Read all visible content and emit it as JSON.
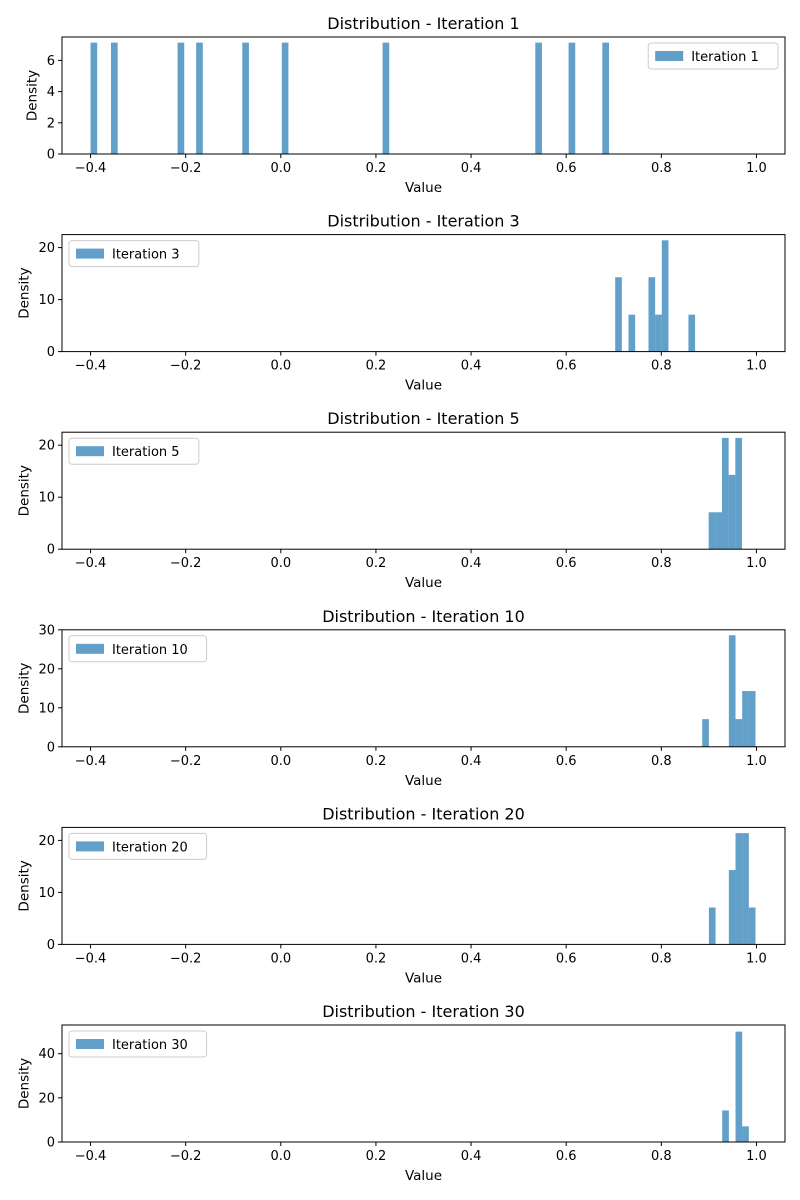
{
  "style": {
    "bar_color": "#1f77b4",
    "bar_alpha": 0.7,
    "axes_color": "#000000",
    "legend_border": "#cccccc"
  },
  "chart_data": [
    {
      "type": "bar",
      "title": "Distribution - Iteration 1",
      "xlabel": "Value",
      "ylabel": "Density",
      "xlim": [
        -0.46,
        1.06
      ],
      "ylim": [
        0,
        7.5
      ],
      "xticks": [
        -0.4,
        -0.2,
        0.0,
        0.2,
        0.4,
        0.6,
        0.8,
        1.0
      ],
      "xtick_labels": [
        "−0.4",
        "−0.2",
        "0.0",
        "0.2",
        "0.4",
        "0.6",
        "0.8",
        "1.0"
      ],
      "yticks": [
        0,
        2,
        4,
        6
      ],
      "ytick_labels": [
        "0",
        "2",
        "4",
        "6"
      ],
      "bin_width": 0.014,
      "bins": [
        {
          "x": -0.393,
          "y": 7.14
        },
        {
          "x": -0.35,
          "y": 7.14
        },
        {
          "x": -0.21,
          "y": 7.14
        },
        {
          "x": -0.171,
          "y": 7.14
        },
        {
          "x": -0.074,
          "y": 7.14
        },
        {
          "x": 0.009,
          "y": 7.14
        },
        {
          "x": 0.221,
          "y": 7.14
        },
        {
          "x": 0.542,
          "y": 7.14
        },
        {
          "x": 0.612,
          "y": 7.14
        },
        {
          "x": 0.683,
          "y": 7.14
        }
      ],
      "legend": {
        "label": "Iteration 1",
        "position": "upper right"
      }
    },
    {
      "type": "bar",
      "title": "Distribution - Iteration 3",
      "xlabel": "Value",
      "ylabel": "Density",
      "xlim": [
        -0.46,
        1.06
      ],
      "ylim": [
        0,
        22.5
      ],
      "xticks": [
        -0.4,
        -0.2,
        0.0,
        0.2,
        0.4,
        0.6,
        0.8,
        1.0
      ],
      "xtick_labels": [
        "−0.4",
        "−0.2",
        "0.0",
        "0.2",
        "0.4",
        "0.6",
        "0.8",
        "1.0"
      ],
      "yticks": [
        0,
        10,
        20
      ],
      "ytick_labels": [
        "0",
        "10",
        "20"
      ],
      "bin_width": 0.014,
      "bins": [
        {
          "x": 0.71,
          "y": 14.3
        },
        {
          "x": 0.738,
          "y": 7.1
        },
        {
          "x": 0.78,
          "y": 14.3
        },
        {
          "x": 0.794,
          "y": 7.1
        },
        {
          "x": 0.808,
          "y": 21.4
        },
        {
          "x": 0.864,
          "y": 7.1
        }
      ],
      "legend": {
        "label": "Iteration 3",
        "position": "upper left"
      }
    },
    {
      "type": "bar",
      "title": "Distribution - Iteration 5",
      "xlabel": "Value",
      "ylabel": "Density",
      "xlim": [
        -0.46,
        1.06
      ],
      "ylim": [
        0,
        22.5
      ],
      "xticks": [
        -0.4,
        -0.2,
        0.0,
        0.2,
        0.4,
        0.6,
        0.8,
        1.0
      ],
      "xtick_labels": [
        "−0.4",
        "−0.2",
        "0.0",
        "0.2",
        "0.4",
        "0.6",
        "0.8",
        "1.0"
      ],
      "yticks": [
        0,
        10,
        20
      ],
      "ytick_labels": [
        "0",
        "10",
        "20"
      ],
      "bin_width": 0.014,
      "bins": [
        {
          "x": 0.9065,
          "y": 7.1
        },
        {
          "x": 0.9205,
          "y": 7.1
        },
        {
          "x": 0.9345,
          "y": 21.4
        },
        {
          "x": 0.9485,
          "y": 14.3
        },
        {
          "x": 0.9625,
          "y": 21.4
        }
      ],
      "legend": {
        "label": "Iteration 5",
        "position": "upper left"
      }
    },
    {
      "type": "bar",
      "title": "Distribution - Iteration 10",
      "xlabel": "Value",
      "ylabel": "Density",
      "xlim": [
        -0.46,
        1.06
      ],
      "ylim": [
        0,
        30
      ],
      "xticks": [
        -0.4,
        -0.2,
        0.0,
        0.2,
        0.4,
        0.6,
        0.8,
        1.0
      ],
      "xtick_labels": [
        "−0.4",
        "−0.2",
        "0.0",
        "0.2",
        "0.4",
        "0.6",
        "0.8",
        "1.0"
      ],
      "yticks": [
        0,
        10,
        20,
        30
      ],
      "ytick_labels": [
        "0",
        "10",
        "20",
        "30"
      ],
      "bin_width": 0.014,
      "bins": [
        {
          "x": 0.893,
          "y": 7.1
        },
        {
          "x": 0.949,
          "y": 28.6
        },
        {
          "x": 0.963,
          "y": 7.1
        },
        {
          "x": 0.977,
          "y": 14.3
        },
        {
          "x": 0.991,
          "y": 14.3
        }
      ],
      "legend": {
        "label": "Iteration 10",
        "position": "upper left"
      }
    },
    {
      "type": "bar",
      "title": "Distribution - Iteration 20",
      "xlabel": "Value",
      "ylabel": "Density",
      "xlim": [
        -0.46,
        1.06
      ],
      "ylim": [
        0,
        22.5
      ],
      "xticks": [
        -0.4,
        -0.2,
        0.0,
        0.2,
        0.4,
        0.6,
        0.8,
        1.0
      ],
      "xtick_labels": [
        "−0.4",
        "−0.2",
        "0.0",
        "0.2",
        "0.4",
        "0.6",
        "0.8",
        "1.0"
      ],
      "yticks": [
        0,
        10,
        20
      ],
      "ytick_labels": [
        "0",
        "10",
        "20"
      ],
      "bin_width": 0.014,
      "bins": [
        {
          "x": 0.907,
          "y": 7.1
        },
        {
          "x": 0.949,
          "y": 14.3
        },
        {
          "x": 0.963,
          "y": 21.4
        },
        {
          "x": 0.977,
          "y": 21.4
        },
        {
          "x": 0.991,
          "y": 7.1
        }
      ],
      "legend": {
        "label": "Iteration 20",
        "position": "upper left"
      }
    },
    {
      "type": "bar",
      "title": "Distribution - Iteration 30",
      "xlabel": "Value",
      "ylabel": "Density",
      "xlim": [
        -0.46,
        1.06
      ],
      "ylim": [
        0,
        53
      ],
      "xticks": [
        -0.4,
        -0.2,
        0.0,
        0.2,
        0.4,
        0.6,
        0.8,
        1.0
      ],
      "xtick_labels": [
        "−0.4",
        "−0.2",
        "0.0",
        "0.2",
        "0.4",
        "0.6",
        "0.8",
        "1.0"
      ],
      "yticks": [
        0,
        20,
        40
      ],
      "ytick_labels": [
        "0",
        "20",
        "40"
      ],
      "bin_width": 0.014,
      "bins": [
        {
          "x": 0.935,
          "y": 14.3
        },
        {
          "x": 0.963,
          "y": 50.0
        },
        {
          "x": 0.977,
          "y": 7.1
        }
      ],
      "legend": {
        "label": "Iteration 30",
        "position": "upper left"
      }
    }
  ]
}
